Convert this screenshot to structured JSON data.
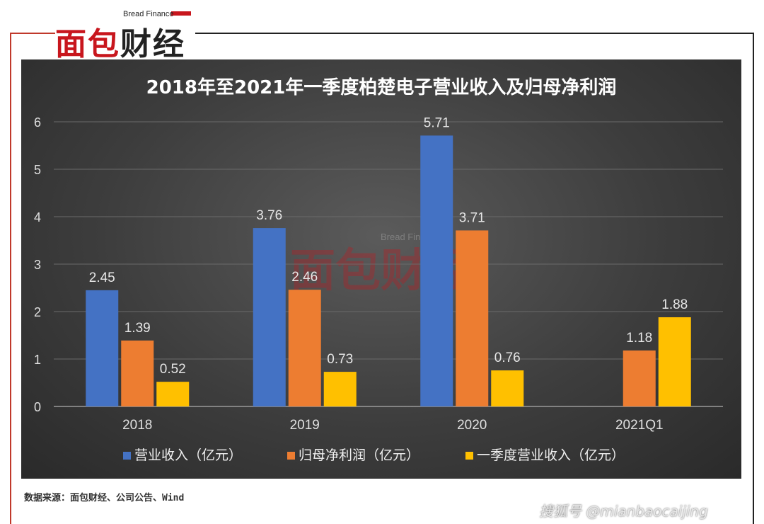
{
  "logo": {
    "en": "Bread Finance",
    "cn_left": "面包",
    "cn_right": "财经"
  },
  "watermark": {
    "en": "Bread Finance",
    "cn": "面包财经"
  },
  "source": "数据来源：面包财经、公司公告、Wind",
  "credit": "搜狐号 @mianbaocaijing",
  "colors": {
    "panel_bg": "#3d3d3d",
    "frame_red": "#c0392b",
    "series": [
      "#4472c4",
      "#ed7d31",
      "#ffc000"
    ]
  },
  "chart_data": {
    "type": "bar",
    "title": "2018年至2021年一季度柏楚电子营业收入及归母净利润",
    "xlabel": "",
    "ylabel": "",
    "categories": [
      "2018",
      "2019",
      "2020",
      "2021Q1"
    ],
    "series": [
      {
        "name": "营业收入（亿元）",
        "values": [
          2.45,
          3.76,
          5.71,
          null
        ]
      },
      {
        "name": "归母净利润（亿元）",
        "values": [
          1.39,
          2.46,
          3.71,
          1.18
        ]
      },
      {
        "name": "一季度营业收入（亿元）",
        "values": [
          0.52,
          0.73,
          0.76,
          1.88
        ]
      }
    ],
    "ylim": [
      0,
      6
    ],
    "yticks": [
      "0",
      "1",
      "2",
      "3",
      "4",
      "5",
      "6"
    ],
    "grid": true,
    "legend_position": "bottom"
  }
}
